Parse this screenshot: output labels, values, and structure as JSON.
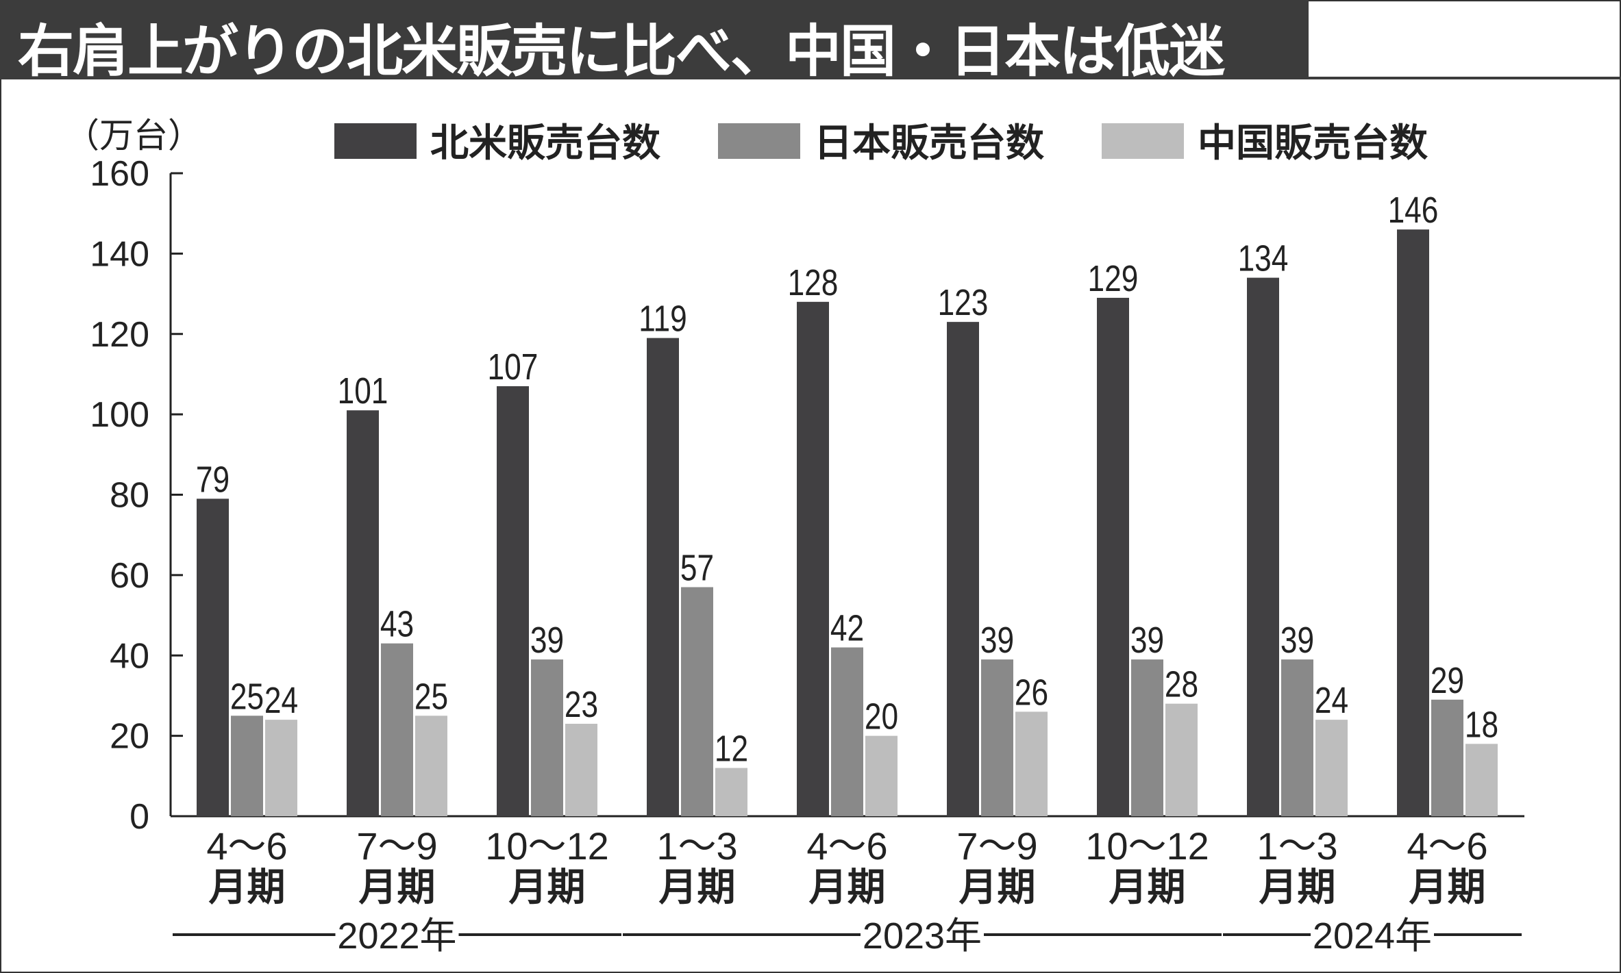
{
  "title": "右肩上がりの北米販売に比べ、中国・日本は低迷",
  "chart_data": {
    "type": "bar",
    "unit_label": "（万台）",
    "categories": [
      "4～6|月期",
      "7～9|月期",
      "10～12|月期",
      "1～3|月期",
      "4～6|月期",
      "7～9|月期",
      "10～12|月期",
      "1～3|月期",
      "4～6|月期"
    ],
    "year_groups": [
      {
        "label": "2022年",
        "from": 0,
        "to": 2
      },
      {
        "label": "2023年",
        "from": 3,
        "to": 6
      },
      {
        "label": "2024年",
        "from": 7,
        "to": 8
      }
    ],
    "series": [
      {
        "name": "北米販売台数",
        "color": "#414042",
        "values": [
          79,
          101,
          107,
          119,
          128,
          123,
          129,
          134,
          146
        ]
      },
      {
        "name": "日本販売台数",
        "color": "#898989",
        "values": [
          25,
          43,
          39,
          57,
          42,
          39,
          39,
          39,
          29
        ]
      },
      {
        "name": "中国販売台数",
        "color": "#bdbdbd",
        "values": [
          24,
          25,
          23,
          12,
          20,
          26,
          28,
          24,
          18
        ]
      }
    ],
    "ylim": [
      0,
      160
    ],
    "yticks": [
      0,
      20,
      40,
      60,
      80,
      100,
      120,
      140,
      160
    ],
    "legend": "top",
    "grid": false
  }
}
